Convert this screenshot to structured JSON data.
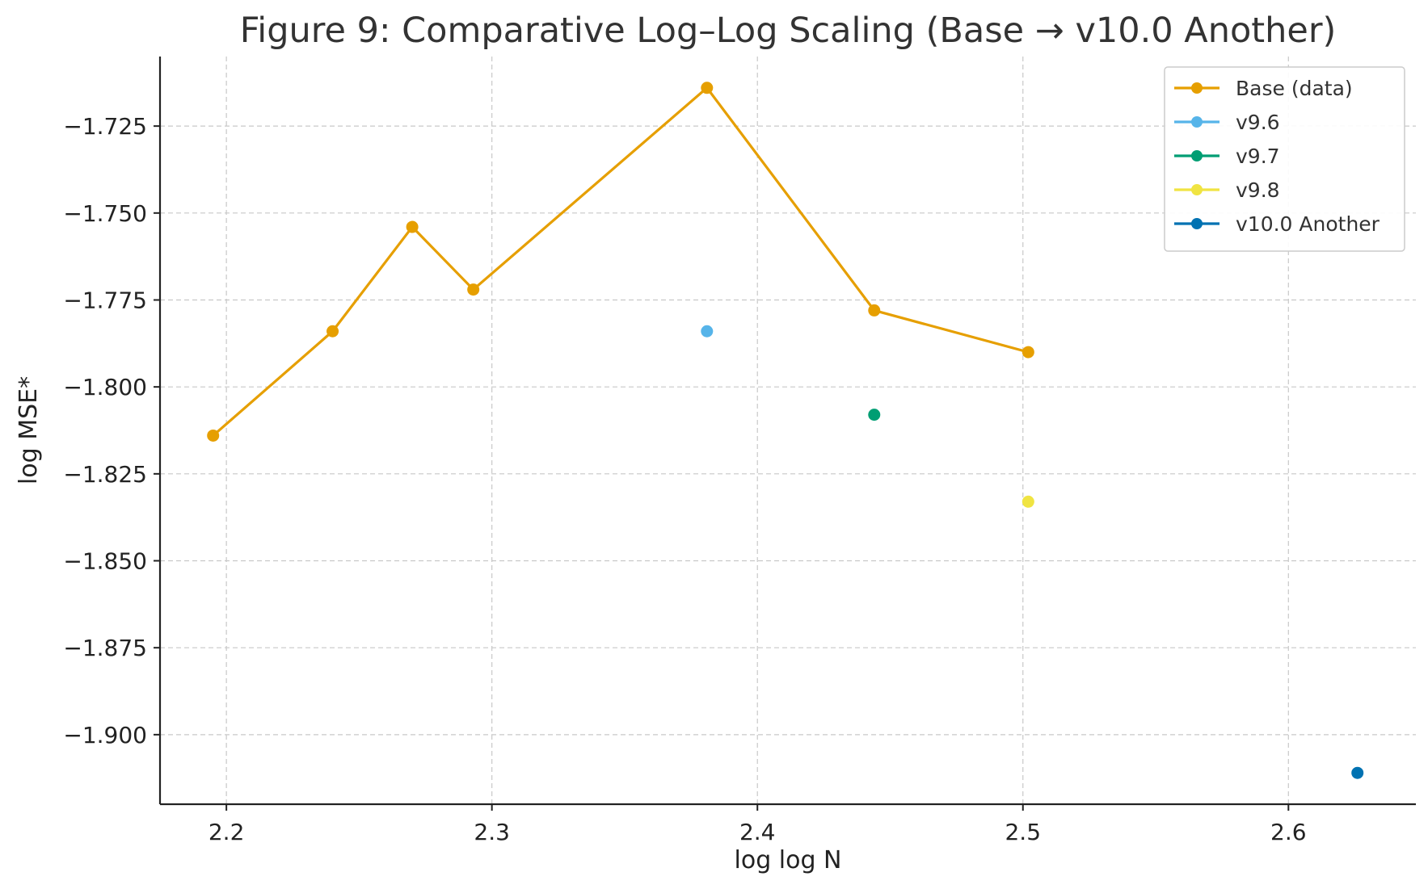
{
  "chart_data": {
    "type": "line",
    "title": "Figure 9: Comparative Log–Log Scaling (Base → v10.0 Another)",
    "xlabel": "log log N",
    "ylabel": "log MSE*",
    "xlim": [
      2.175,
      2.648
    ],
    "ylim": [
      -1.92,
      -1.705
    ],
    "x_ticks": [
      2.2,
      2.3,
      2.4,
      2.5,
      2.6
    ],
    "x_tick_labels": [
      "2.2",
      "2.3",
      "2.4",
      "2.5",
      "2.6"
    ],
    "y_ticks": [
      -1.725,
      -1.75,
      -1.775,
      -1.8,
      -1.825,
      -1.85,
      -1.875,
      -1.9
    ],
    "y_tick_labels": [
      "−1.725",
      "−1.750",
      "−1.775",
      "−1.800",
      "−1.825",
      "−1.850",
      "−1.875",
      "−1.900"
    ],
    "grid": true,
    "legend_position": "top-right",
    "series": [
      {
        "name": "Base (data)",
        "color": "#E69F00",
        "line": true,
        "x": [
          2.195,
          2.24,
          2.27,
          2.293,
          2.381,
          2.444,
          2.502
        ],
        "y": [
          -1.814,
          -1.784,
          -1.754,
          -1.772,
          -1.714,
          -1.778,
          -1.79
        ]
      },
      {
        "name": "v9.6",
        "color": "#56B4E9",
        "line": false,
        "x": [
          2.381
        ],
        "y": [
          -1.784
        ]
      },
      {
        "name": "v9.7",
        "color": "#009E73",
        "line": false,
        "x": [
          2.444
        ],
        "y": [
          -1.808
        ]
      },
      {
        "name": "v9.8",
        "color": "#F0E442",
        "line": false,
        "x": [
          2.502
        ],
        "y": [
          -1.833
        ]
      },
      {
        "name": "v10.0 Another",
        "color": "#0072B2",
        "line": false,
        "x": [
          2.626
        ],
        "y": [
          -1.911
        ]
      }
    ]
  }
}
